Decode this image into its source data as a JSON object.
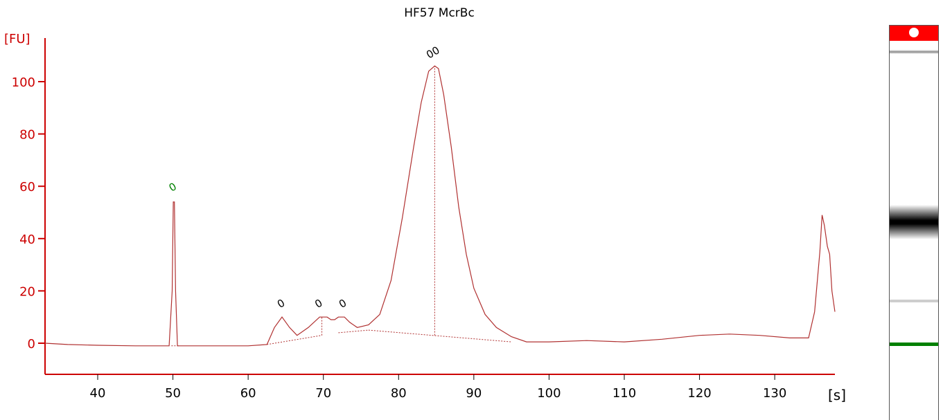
{
  "title": "HF57 McrBc",
  "chart_data": {
    "type": "line",
    "title": "HF57 McrBc",
    "ylabel": "[FU]",
    "xlabel": "[s]",
    "xlim": [
      33,
      138
    ],
    "ylim": [
      -12,
      118
    ],
    "xticks": [
      40,
      50,
      60,
      70,
      80,
      90,
      100,
      110,
      120,
      130
    ],
    "yticks": [
      0,
      20,
      40,
      60,
      80,
      100
    ],
    "grid": false,
    "colors": {
      "axis": "#cc0000",
      "trace": "#b03030",
      "marker_peak": "#000000",
      "marker_lower": "#008000"
    },
    "series": [
      {
        "x": [
          33,
          36,
          40,
          45,
          49.5,
          49.9,
          50.05,
          50.2,
          50.35,
          50.6,
          51,
          55,
          60,
          62.5,
          63.5,
          64.5,
          65.5,
          66.5,
          68,
          69.5,
          70.5,
          71,
          71.5,
          72,
          72.8,
          73.5,
          74.5,
          76,
          77.5,
          79,
          80.5,
          82,
          83,
          84,
          84.8,
          85.3,
          86,
          87,
          88,
          89,
          90,
          91.5,
          93,
          95,
          97,
          100,
          105,
          110,
          115,
          120,
          124,
          128,
          132,
          134.5,
          135.3,
          136,
          136.3,
          136.6,
          137,
          137.3,
          137.6,
          138
        ],
        "y": [
          0,
          -0.5,
          -0.8,
          -1,
          -1,
          20,
          54,
          54,
          20,
          -1,
          -1,
          -1,
          -1,
          -0.5,
          6,
          10,
          6,
          3,
          6,
          10,
          10,
          9,
          9,
          10,
          10,
          8,
          6,
          7,
          11,
          24,
          48,
          75,
          92,
          104,
          106,
          105,
          95,
          75,
          52,
          34,
          21,
          11,
          6,
          2.5,
          0.5,
          0.5,
          1,
          0.5,
          1.5,
          3,
          3.5,
          3,
          2,
          2,
          12,
          35,
          49,
          45,
          37,
          34,
          20,
          12
        ]
      }
    ],
    "annotations": [
      {
        "x": 50.2,
        "y": 58.5,
        "label": "0",
        "color": "#008000"
      },
      {
        "x": 64.6,
        "y": 14,
        "label": "0",
        "color": "#000000"
      },
      {
        "x": 69.6,
        "y": 14,
        "label": "0",
        "color": "#000000"
      },
      {
        "x": 72.8,
        "y": 14,
        "label": "0",
        "color": "#000000"
      },
      {
        "x": 84.8,
        "y": 110,
        "label": "00",
        "color": "#000000"
      }
    ]
  },
  "gel": {
    "lane_colors": {
      "top": "#ff0000",
      "bottom": "#008000"
    },
    "bands": [
      {
        "level": 0.96,
        "color": "#888888"
      },
      {
        "level": 0.4,
        "color": "#000000"
      },
      {
        "level": 0.14,
        "color": "#bbbbbb"
      },
      {
        "level": 0.0,
        "color": "#008000"
      }
    ]
  }
}
